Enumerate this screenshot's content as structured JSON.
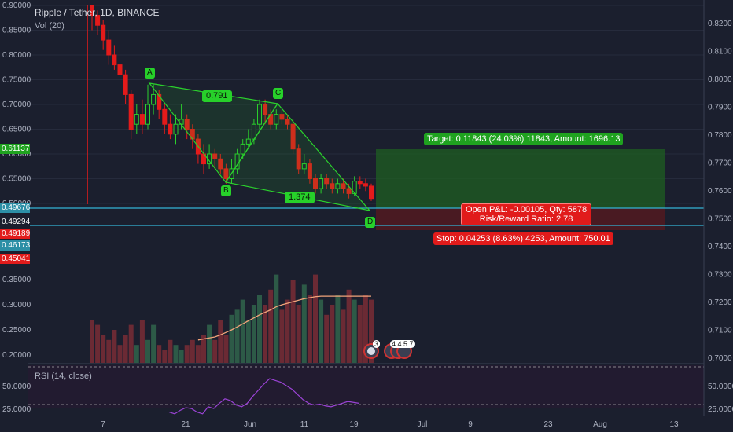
{
  "header": {
    "title": "Ripple / Tether, 1D, BINANCE",
    "volume_label": "Vol (20)",
    "rsi_label": "RSI (14, close)"
  },
  "pattern": {
    "points": [
      "A",
      "B",
      "C",
      "D"
    ],
    "ratios": {
      "abc": "0.791",
      "bcd": "1.374"
    }
  },
  "position": {
    "target_text": "Target: 0.11843 (24.03%) 11843, Amount: 1696.13",
    "pnl_line1": "Open P&L: -0.00105, Qty: 5878",
    "pnl_line2": "Risk/Reward Ratio: 2.78",
    "stop_text": "Stop: 0.04253 (8.63%) 4253, Amount: 750.01"
  },
  "left_price_tags": [
    {
      "label": "0.61137",
      "color": "#1fa21f"
    },
    {
      "label": "0.49676",
      "color": "#2c8fa6"
    },
    {
      "label": "0.49294",
      "color": "#1b1f2e"
    },
    {
      "label": "0.49189",
      "color": "#e11b1b"
    },
    {
      "label": "0.46173",
      "color": "#2c8fa6"
    },
    {
      "label": "0.45041",
      "color": "#e11b1b"
    }
  ],
  "events": {
    "badge1": "3",
    "badge2": "4 4 5 7"
  },
  "chart_data": {
    "type": "candlestick",
    "x_ticks": [
      "7",
      "21",
      "Jun",
      "11",
      "19",
      "Jul",
      "9",
      "23",
      "Aug",
      "13"
    ],
    "left_axis_price": [
      "0.90000",
      "0.85000",
      "0.80000",
      "0.75000",
      "0.70000",
      "0.65000",
      "0.60000",
      "0.55000",
      "0.50000"
    ],
    "left_axis_volume": [
      "0.35000",
      "0.30000",
      "0.25000",
      "0.20000"
    ],
    "right_axis": [
      "0.8200",
      "0.8100",
      "0.8000",
      "0.7900",
      "0.7800",
      "0.7700",
      "0.7600",
      "0.7500",
      "0.7400",
      "0.7300",
      "0.7200",
      "0.7100",
      "0.7000"
    ],
    "rsi_axis": [
      "50.0000",
      "25.0000"
    ],
    "pattern_prices": {
      "A": 0.745,
      "B": 0.547,
      "C": 0.705,
      "D": 0.513
    },
    "candles": [
      [
        0.9,
        0.88,
        0.9,
        0.85
      ],
      [
        0.88,
        0.86,
        0.89,
        0.84
      ],
      [
        0.86,
        0.83,
        0.87,
        0.81
      ],
      [
        0.83,
        0.8,
        0.85,
        0.78
      ],
      [
        0.8,
        0.78,
        0.82,
        0.77
      ],
      [
        0.78,
        0.76,
        0.79,
        0.74
      ],
      [
        0.76,
        0.72,
        0.77,
        0.7
      ],
      [
        0.72,
        0.65,
        0.73,
        0.63
      ],
      [
        0.66,
        0.68,
        0.7,
        0.64
      ],
      [
        0.68,
        0.66,
        0.71,
        0.64
      ],
      [
        0.66,
        0.7,
        0.74,
        0.65
      ],
      [
        0.7,
        0.72,
        0.74,
        0.68
      ],
      [
        0.72,
        0.69,
        0.73,
        0.67
      ],
      [
        0.69,
        0.66,
        0.7,
        0.64
      ],
      [
        0.66,
        0.64,
        0.68,
        0.63
      ],
      [
        0.64,
        0.66,
        0.68,
        0.62
      ],
      [
        0.66,
        0.67,
        0.7,
        0.65
      ],
      [
        0.67,
        0.65,
        0.68,
        0.63
      ],
      [
        0.65,
        0.63,
        0.66,
        0.61
      ],
      [
        0.63,
        0.6,
        0.64,
        0.58
      ],
      [
        0.6,
        0.58,
        0.62,
        0.56
      ],
      [
        0.58,
        0.6,
        0.62,
        0.57
      ],
      [
        0.6,
        0.59,
        0.61,
        0.57
      ],
      [
        0.59,
        0.57,
        0.6,
        0.56
      ],
      [
        0.57,
        0.55,
        0.58,
        0.54
      ],
      [
        0.55,
        0.57,
        0.59,
        0.54
      ],
      [
        0.57,
        0.6,
        0.61,
        0.56
      ],
      [
        0.6,
        0.62,
        0.63,
        0.59
      ],
      [
        0.62,
        0.63,
        0.65,
        0.61
      ],
      [
        0.63,
        0.66,
        0.67,
        0.62
      ],
      [
        0.66,
        0.7,
        0.71,
        0.65
      ],
      [
        0.7,
        0.68,
        0.71,
        0.66
      ],
      [
        0.68,
        0.66,
        0.69,
        0.65
      ],
      [
        0.66,
        0.68,
        0.69,
        0.65
      ],
      [
        0.68,
        0.67,
        0.69,
        0.66
      ],
      [
        0.67,
        0.66,
        0.68,
        0.65
      ],
      [
        0.66,
        0.61,
        0.67,
        0.6
      ],
      [
        0.61,
        0.57,
        0.62,
        0.56
      ],
      [
        0.57,
        0.58,
        0.6,
        0.56
      ],
      [
        0.58,
        0.55,
        0.59,
        0.54
      ],
      [
        0.55,
        0.53,
        0.56,
        0.52
      ],
      [
        0.53,
        0.55,
        0.56,
        0.52
      ],
      [
        0.55,
        0.54,
        0.56,
        0.53
      ],
      [
        0.54,
        0.53,
        0.55,
        0.52
      ],
      [
        0.53,
        0.54,
        0.55,
        0.52
      ],
      [
        0.54,
        0.53,
        0.55,
        0.52
      ],
      [
        0.53,
        0.52,
        0.54,
        0.51
      ],
      [
        0.52,
        0.545,
        0.555,
        0.515
      ],
      [
        0.545,
        0.54,
        0.555,
        0.53
      ],
      [
        0.54,
        0.535,
        0.55,
        0.525
      ],
      [
        0.535,
        0.51,
        0.54,
        0.505
      ]
    ],
    "volume": [
      0.27,
      0.26,
      0.24,
      0.23,
      0.25,
      0.22,
      0.24,
      0.26,
      0.22,
      0.27,
      0.23,
      0.26,
      0.22,
      0.21,
      0.23,
      0.22,
      0.21,
      0.22,
      0.23,
      0.22,
      0.24,
      0.26,
      0.23,
      0.27,
      0.24,
      0.28,
      0.29,
      0.31,
      0.27,
      0.3,
      0.32,
      0.3,
      0.33,
      0.36,
      0.29,
      0.31,
      0.35,
      0.3,
      0.34,
      0.32,
      0.36,
      0.31,
      0.28,
      0.3,
      0.32,
      0.29,
      0.33,
      0.31,
      0.3,
      0.32,
      0.31
    ],
    "volume_ma": [
      null,
      null,
      null,
      null,
      null,
      null,
      null,
      null,
      null,
      null,
      null,
      null,
      null,
      null,
      null,
      null,
      null,
      null,
      null,
      0.23,
      0.232,
      0.234,
      0.236,
      0.24,
      0.245,
      0.25,
      0.256,
      0.262,
      0.268,
      0.274,
      0.28,
      0.285,
      0.29,
      0.296,
      0.3,
      0.303,
      0.306,
      0.309,
      0.312,
      0.314,
      0.316,
      0.317,
      0.317,
      0.317,
      0.317,
      0.317,
      0.317,
      0.317,
      0.317,
      0.317,
      0.317
    ],
    "rsi": [
      20,
      18,
      22,
      25,
      24,
      20,
      18,
      26,
      24,
      30,
      35,
      33,
      28,
      26,
      30,
      38,
      45,
      52,
      58,
      56,
      54,
      50,
      46,
      40,
      34,
      30,
      28,
      29,
      27,
      26,
      28,
      30,
      32,
      31,
      30
    ]
  }
}
